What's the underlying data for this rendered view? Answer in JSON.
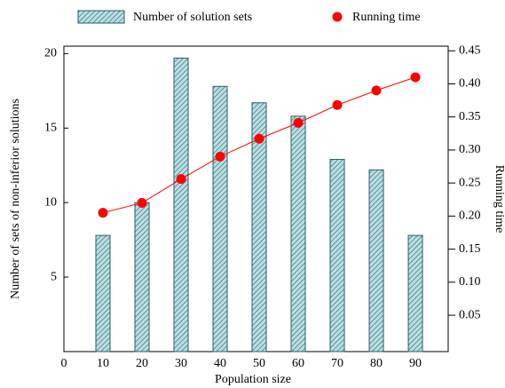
{
  "chart_data": {
    "type": "bar",
    "x": [
      10,
      20,
      30,
      40,
      50,
      60,
      70,
      80,
      90
    ],
    "xlim": [
      0,
      98.4
    ],
    "xticks": [
      0,
      10,
      20,
      30,
      40,
      50,
      60,
      70,
      80,
      90
    ],
    "xlabel": "Population size",
    "ylabel": "Number of sets of non-inferior solutions",
    "y2label": "Running time",
    "ylim": [
      0,
      20.5
    ],
    "yticks": [
      5,
      10,
      15,
      20
    ],
    "y2lim": [
      -0.005,
      0.457
    ],
    "y2ticks": [
      0.05,
      {
        "value": 0.1,
        "label": "0.10"
      },
      0.15,
      {
        "value": 0.2,
        "label": "0.20"
      },
      0.25,
      {
        "value": 0.3,
        "label": "0.30"
      },
      0.35,
      {
        "value": 0.4,
        "label": "0.40"
      },
      0.45
    ],
    "series": [
      {
        "name": "Number of solution sets",
        "type": "bar",
        "color": "#b8dfe3",
        "values": [
          7.8,
          10,
          19.7,
          17.8,
          16.7,
          15.8,
          12.9,
          12.2,
          7.8
        ]
      },
      {
        "name": "Running time",
        "type": "line",
        "axis": "y2",
        "color": "#ff0000",
        "values": [
          0.205,
          0.22,
          0.256,
          0.29,
          0.317,
          0.341,
          0.368,
          0.39,
          0.41
        ]
      }
    ]
  }
}
